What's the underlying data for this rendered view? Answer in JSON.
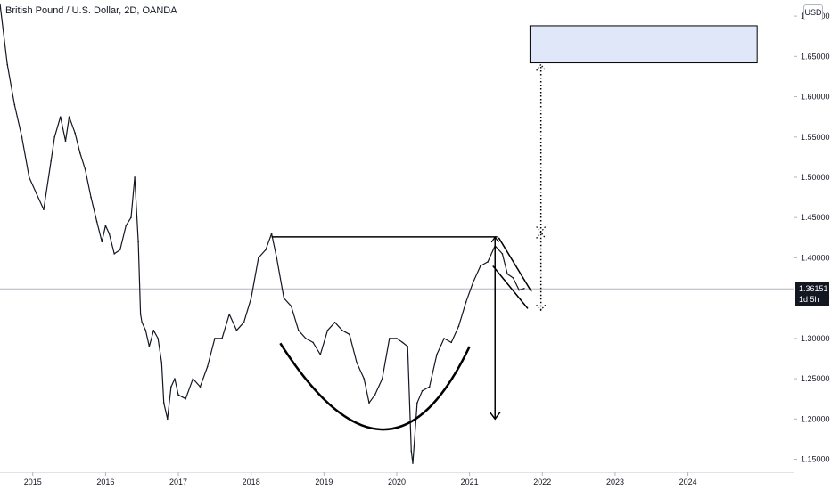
{
  "header": {
    "title": "British Pound / U.S. Dollar, 2D, OANDA",
    "currency": "USD"
  },
  "price_tag": {
    "price": "1.36151",
    "countdown": "1d 5h"
  },
  "colors": {
    "price_line": "#131722",
    "drawing": "#000000",
    "target_box_fill": "#dfe7f8",
    "background": "#ffffff",
    "axis_text": "#131722"
  },
  "chart_data": {
    "type": "line",
    "title": "British Pound / U.S. Dollar, 2D, OANDA",
    "xlabel": "",
    "ylabel": "",
    "x_ticks": [
      "2015",
      "2016",
      "2017",
      "2018",
      "2019",
      "2020",
      "2021",
      "2022",
      "2023",
      "2024"
    ],
    "y_ticks": [
      "1.70000",
      "1.65000",
      "1.60000",
      "1.55000",
      "1.50000",
      "1.45000",
      "1.40000",
      "1.35000",
      "1.30000",
      "1.25000",
      "1.20000",
      "1.15000"
    ],
    "ylim": [
      1.134,
      1.72
    ],
    "xlim": [
      2014.55,
      2025.45
    ],
    "grid": false,
    "last_price": 1.36151,
    "series": [
      {
        "x": [
          2014.55,
          2014.65,
          2014.75,
          2014.85,
          2014.95,
          2015.05,
          2015.15,
          2015.25,
          2015.3,
          2015.38,
          2015.45,
          2015.5,
          2015.58,
          2015.65,
          2015.72,
          2015.8,
          2015.88,
          2015.95,
          2016.0,
          2016.05,
          2016.12,
          2016.2,
          2016.28,
          2016.35,
          2016.4,
          2016.45,
          2016.48,
          2016.5,
          2016.55,
          2016.6,
          2016.66,
          2016.72,
          2016.77,
          2016.8,
          2016.85,
          2016.9,
          2016.95,
          2017.0,
          2017.1,
          2017.2,
          2017.3,
          2017.4,
          2017.5,
          2017.6,
          2017.7,
          2017.8,
          2017.9,
          2018.0,
          2018.1,
          2018.2,
          2018.28,
          2018.35,
          2018.45,
          2018.55,
          2018.65,
          2018.75,
          2018.85,
          2018.95,
          2019.05,
          2019.15,
          2019.25,
          2019.35,
          2019.45,
          2019.55,
          2019.62,
          2019.7,
          2019.8,
          2019.9,
          2020.0,
          2020.08,
          2020.15,
          2020.2,
          2020.22,
          2020.28,
          2020.35,
          2020.45,
          2020.55,
          2020.65,
          2020.75,
          2020.85,
          2020.95,
          2021.05,
          2021.15,
          2021.25,
          2021.35,
          2021.45,
          2021.52,
          2021.6,
          2021.68,
          2021.75
        ],
        "values": [
          1.715,
          1.64,
          1.59,
          1.55,
          1.5,
          1.48,
          1.46,
          1.52,
          1.55,
          1.575,
          1.545,
          1.575,
          1.555,
          1.53,
          1.51,
          1.475,
          1.445,
          1.42,
          1.44,
          1.43,
          1.405,
          1.41,
          1.44,
          1.45,
          1.5,
          1.42,
          1.33,
          1.32,
          1.31,
          1.29,
          1.31,
          1.3,
          1.27,
          1.22,
          1.2,
          1.24,
          1.25,
          1.23,
          1.225,
          1.25,
          1.24,
          1.265,
          1.3,
          1.3,
          1.33,
          1.31,
          1.32,
          1.35,
          1.4,
          1.41,
          1.43,
          1.4,
          1.35,
          1.34,
          1.31,
          1.3,
          1.295,
          1.28,
          1.31,
          1.32,
          1.31,
          1.305,
          1.27,
          1.25,
          1.22,
          1.23,
          1.25,
          1.3,
          1.3,
          1.295,
          1.29,
          1.16,
          1.145,
          1.22,
          1.235,
          1.24,
          1.28,
          1.3,
          1.295,
          1.315,
          1.345,
          1.37,
          1.39,
          1.395,
          1.415,
          1.405,
          1.38,
          1.375,
          1.36,
          1.362
        ]
      }
    ],
    "annotations": [
      {
        "type": "horizontal-resistance-line",
        "x": [
          2018.28,
          2021.38
        ],
        "y": [
          1.426,
          1.426
        ]
      },
      {
        "type": "cup-arc",
        "x": [
          2018.4,
          2019.8,
          2021.0
        ],
        "y": [
          1.294,
          1.187,
          1.29
        ]
      },
      {
        "type": "flag-upper",
        "x": [
          2021.4,
          2021.85
        ],
        "y": [
          1.425,
          1.358
        ]
      },
      {
        "type": "flag-lower",
        "x": [
          2021.32,
          2021.8
        ],
        "y": [
          1.39,
          1.337
        ]
      },
      {
        "type": "measured-move-arrow-down",
        "x": [
          2021.35,
          2021.35
        ],
        "y": [
          1.426,
          1.2
        ]
      },
      {
        "type": "projected-move-arrow-up-dotted",
        "x": [
          2021.98,
          2021.98
        ],
        "y": [
          1.335,
          1.432
        ]
      },
      {
        "type": "projected-move-arrow-up-dotted",
        "x": [
          2021.98,
          2021.98
        ],
        "y": [
          1.432,
          1.64
        ]
      },
      {
        "type": "target-zone",
        "x": [
          2021.83,
          2024.95
        ],
        "y": [
          1.642,
          1.688
        ]
      }
    ]
  }
}
